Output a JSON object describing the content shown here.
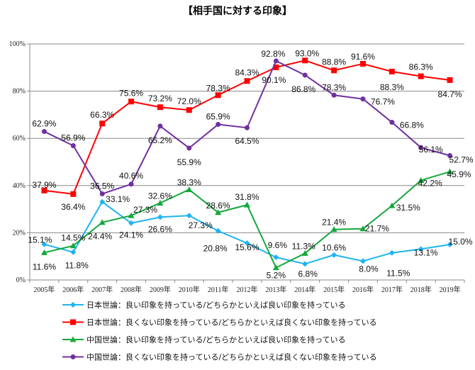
{
  "chart_data": {
    "type": "line",
    "title": "【相手国に対する印象】",
    "categories": [
      "2005年",
      "2006年",
      "2007年",
      "2008年",
      "2009年",
      "2010年",
      "2011年",
      "2012年",
      "2013年",
      "2014年",
      "2015年",
      "2016年",
      "2017年",
      "2018年",
      "2019年"
    ],
    "ylim": [
      0,
      100
    ],
    "yticks": [
      "0%",
      "20%",
      "40%",
      "60%",
      "80%",
      "100%"
    ],
    "grid": true,
    "legend_position": "bottom",
    "series": [
      {
        "name": "日本世論：良い印象を持っている/どちらかといえば良い印象を持っている",
        "color": "#1EB4F0",
        "marker": "diamond",
        "values": [
          15.1,
          11.8,
          33.1,
          24.1,
          26.6,
          27.3,
          20.8,
          15.6,
          9.6,
          6.8,
          10.6,
          8.0,
          11.5,
          13.1,
          15.0
        ]
      },
      {
        "name": "日本世論：良くない印象を持っている/どちらかといえば良くない印象を持っている",
        "color": "#FF0000",
        "marker": "square",
        "values": [
          37.9,
          36.4,
          66.3,
          75.6,
          73.2,
          72.0,
          78.3,
          84.3,
          90.1,
          93.0,
          88.8,
          91.6,
          88.3,
          86.3,
          84.7
        ]
      },
      {
        "name": "中国世論：良い印象を持っている/どちらかといえば良い印象を持っている",
        "color": "#14A83C",
        "marker": "triangle",
        "values": [
          11.6,
          14.5,
          24.4,
          27.3,
          32.6,
          38.3,
          28.6,
          31.8,
          5.2,
          11.3,
          21.4,
          21.7,
          31.5,
          42.2,
          45.9
        ]
      },
      {
        "name": "中国世論：良くない印象を持っている/どちらかといえば良くない印象を持っている",
        "color": "#7030A0",
        "marker": "circle",
        "values": [
          62.9,
          56.9,
          36.5,
          40.6,
          65.2,
          55.9,
          65.9,
          64.5,
          92.8,
          86.8,
          78.3,
          76.7,
          66.8,
          56.1,
          52.7
        ]
      }
    ]
  }
}
